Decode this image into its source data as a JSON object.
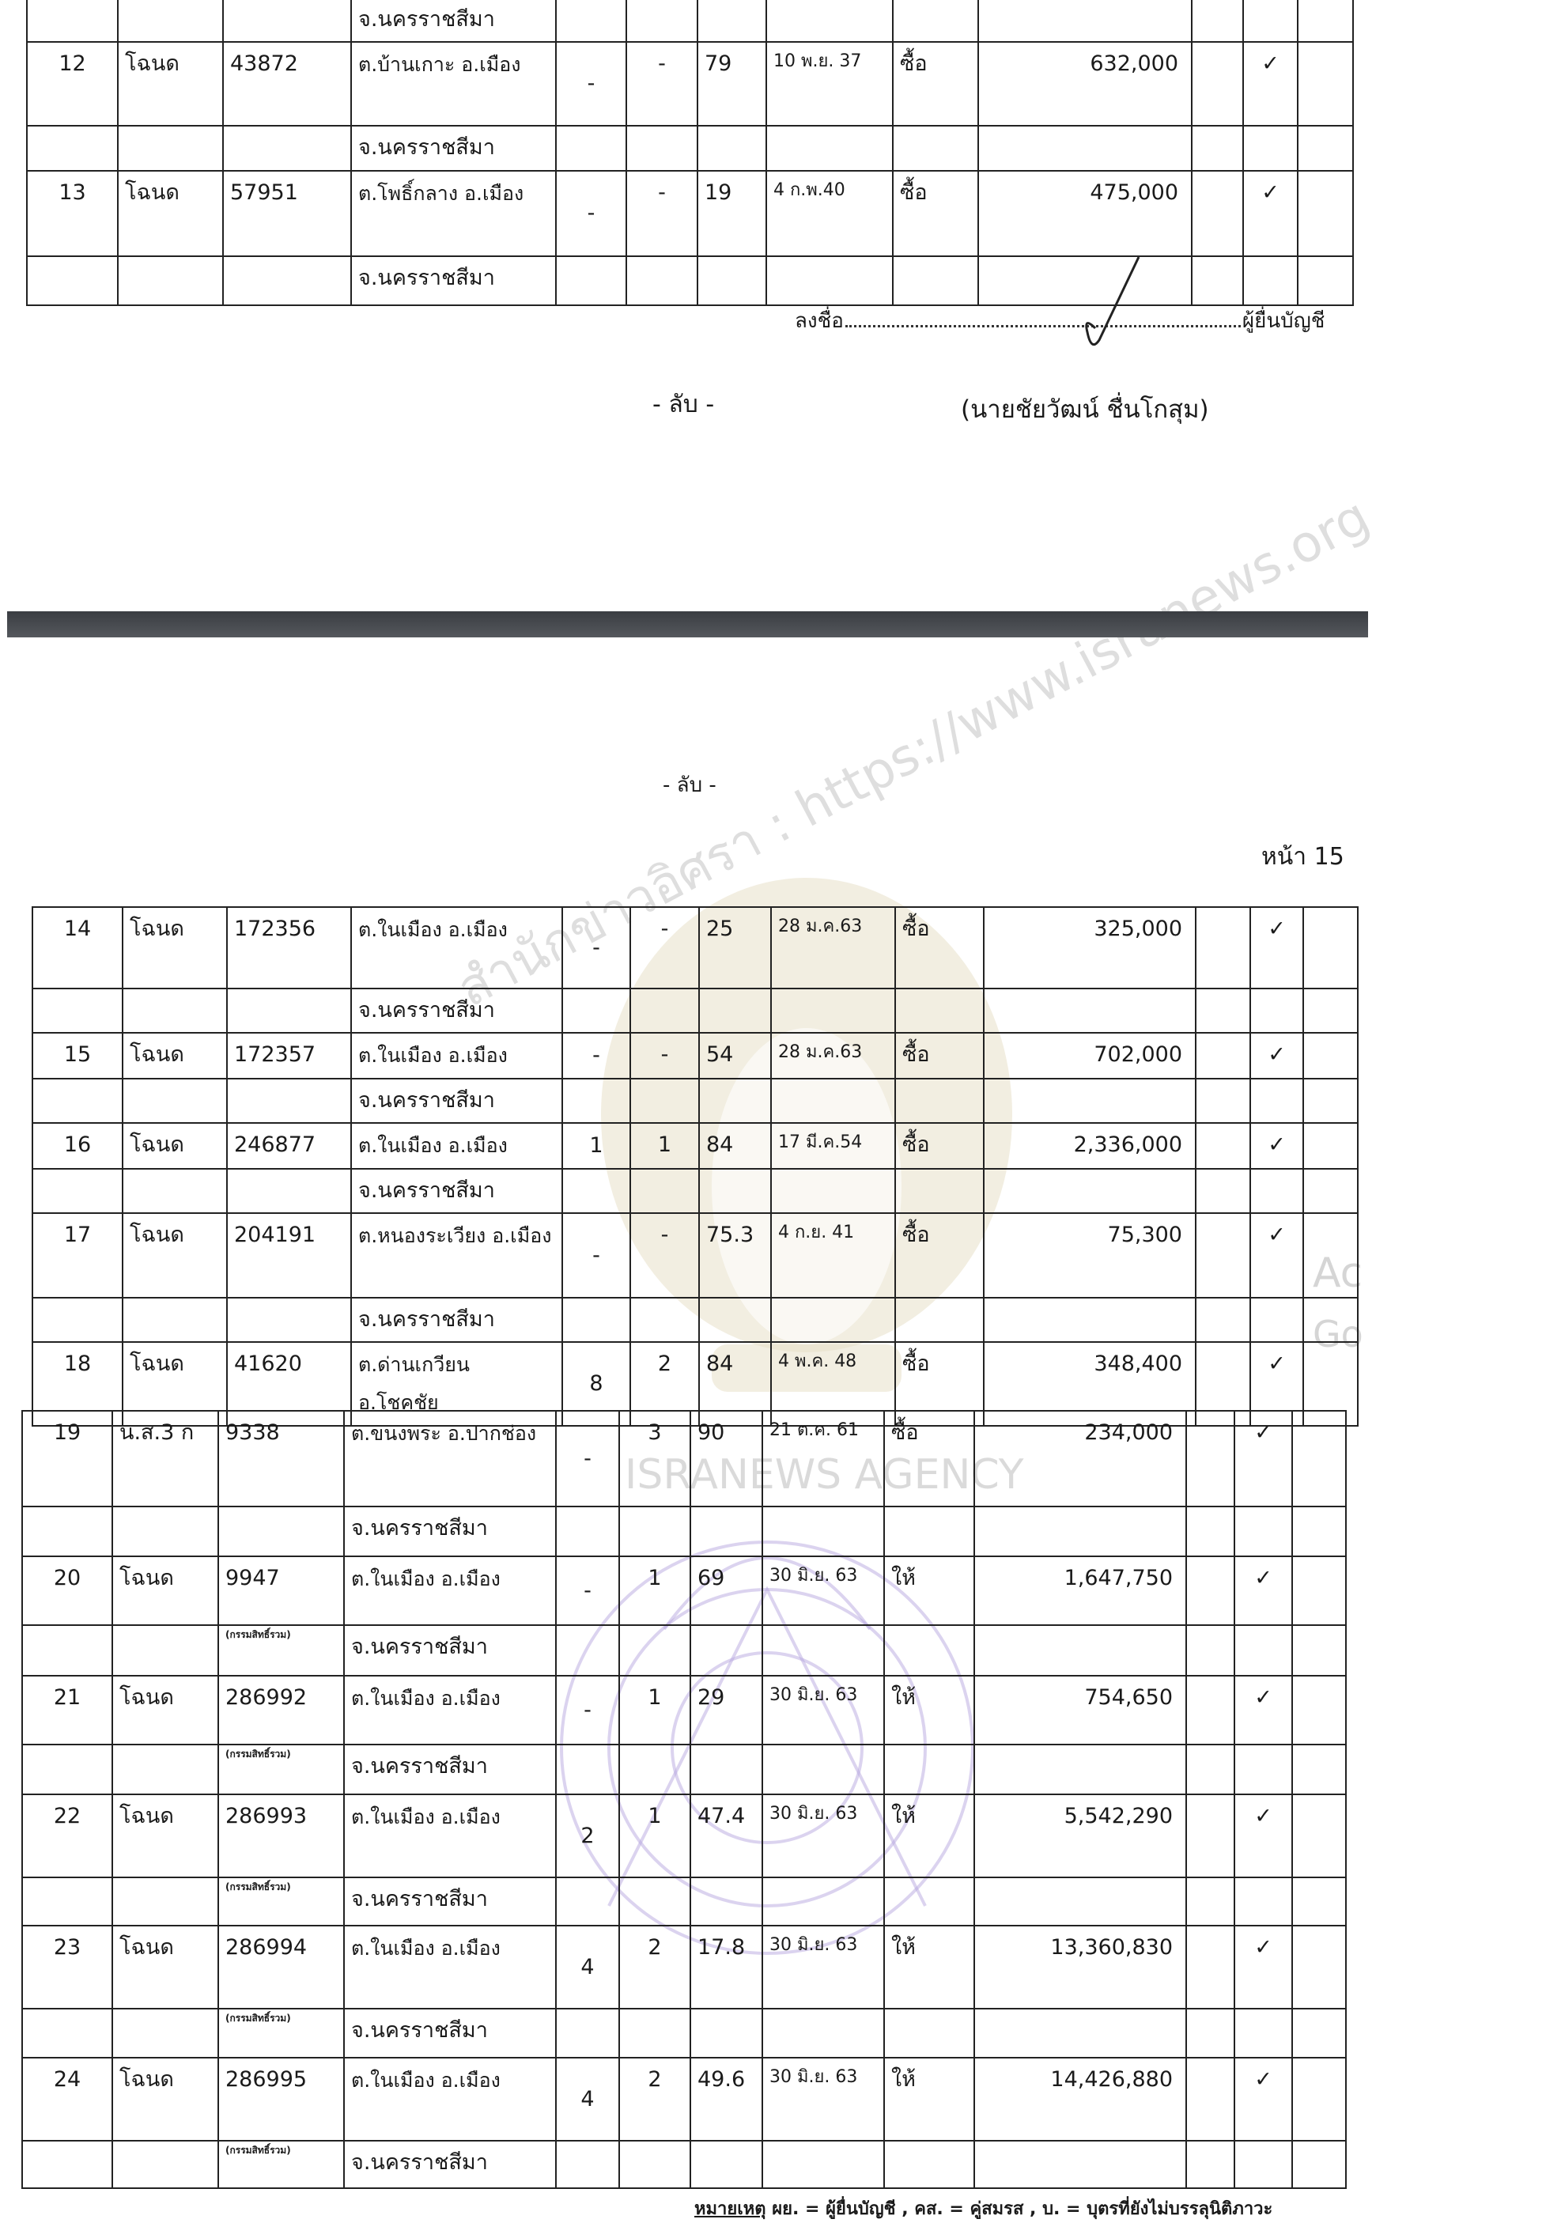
{
  "page1": {
    "table": {
      "records": [
        {
          "province": "จ.นครราชสีมา"
        },
        {
          "no": "12",
          "type": "โฉนด",
          "deed": "43872",
          "location": "ต.บ้านเกาะ อ.เมือง",
          "province": "จ.นครราชสีมา",
          "rai": "-",
          "ngan": "-",
          "wa": "79",
          "date": "10 พ.ย. 37",
          "acq": "ซื้อ",
          "price": "632,000",
          "check": "✓"
        },
        {
          "no": "13",
          "type": "โฉนด",
          "deed": "57951",
          "location": "ต.โพธิ์กลาง อ.เมือง",
          "province": "จ.นครราชสีมา",
          "rai": "-",
          "ngan": "-",
          "wa": "19",
          "date": "4 ก.พ.40",
          "acq": "ซื้อ",
          "price": "475,000",
          "check": "✓"
        }
      ]
    },
    "signature": {
      "sign_label": "ลงชื่อ",
      "role": "ผู้ยื่นบัญชี",
      "name": "(นายชัยวัฒน์ ชื่นโกสุม)"
    },
    "classification": "- ลับ -"
  },
  "page2": {
    "classification": "- ลับ -",
    "page_number": "หน้า 15",
    "table_a": {
      "records": [
        {
          "no": "14",
          "type": "โฉนด",
          "deed": "172356",
          "location": "ต.ในเมือง อ.เมือง",
          "province": "จ.นครราชสีมา",
          "rai": "-",
          "ngan": "-",
          "wa": "25",
          "date": "28 ม.ค.63",
          "acq": "ซื้อ",
          "price": "325,000",
          "check": "✓"
        },
        {
          "no": "15",
          "type": "โฉนด",
          "deed": "172357",
          "location": "ต.ในเมือง อ.เมือง",
          "province": "จ.นครราชสีมา",
          "rai": "-",
          "ngan": "-",
          "wa": "54",
          "date": "28 ม.ค.63",
          "acq": "ซื้อ",
          "price": "702,000",
          "check": "✓"
        },
        {
          "no": "16",
          "type": "โฉนด",
          "deed": "246877",
          "location": "ต.ในเมือง อ.เมือง",
          "province": "จ.นครราชสีมา",
          "rai": "1",
          "ngan": "1",
          "wa": "84",
          "date": "17 มี.ค.54",
          "acq": "ซื้อ",
          "price": "2,336,000",
          "check": "✓"
        },
        {
          "no": "17",
          "type": "โฉนด",
          "deed": "204191",
          "location": "ต.หนองระเวียง อ.เมือง",
          "province": "จ.นครราชสีมา",
          "rai": "-",
          "ngan": "-",
          "wa": "75.3",
          "date": "4 ก.ย. 41",
          "acq": "ซื้อ",
          "price": "75,300",
          "check": "✓"
        },
        {
          "no": "18",
          "type": "โฉนด",
          "deed": "41620",
          "location": "ต.ด่านเกวียน อ.โชคชัย",
          "rai": "8",
          "ngan": "2",
          "wa": "84",
          "date": "4 พ.ค. 48",
          "acq": "ซื้อ",
          "price": "348,400",
          "check": "✓"
        }
      ]
    },
    "table_b": {
      "records": [
        {
          "no": "19",
          "type": "น.ส.3 ก",
          "deed": "9338",
          "location": "ต.ขนงพระ อ.ปากช่อง",
          "province": "จ.นครราชสีมา",
          "rai": "-",
          "ngan": "3",
          "wa": "90",
          "date": "21 ต.ค. 61",
          "acq": "ซื้อ",
          "price": "234,000",
          "check": "✓"
        },
        {
          "no": "20",
          "type": "โฉนด",
          "deed": "9947",
          "deed_note": "(กรรมสิทธิ์รวม)",
          "location": "ต.ในเมือง อ.เมือง",
          "province": "จ.นครราชสีมา",
          "rai": "-",
          "ngan": "1",
          "wa": "69",
          "date": "30 มิ.ย. 63",
          "acq": "ให้",
          "price": "1,647,750",
          "check": "✓"
        },
        {
          "no": "21",
          "type": "โฉนด",
          "deed": "286992",
          "deed_note": "(กรรมสิทธิ์รวม)",
          "location": "ต.ในเมือง อ.เมือง",
          "province": "จ.นครราชสีมา",
          "rai": "-",
          "ngan": "1",
          "wa": "29",
          "date": "30 มิ.ย. 63",
          "acq": "ให้",
          "price": "754,650",
          "check": "✓"
        },
        {
          "no": "22",
          "type": "โฉนด",
          "deed": "286993",
          "deed_note": "(กรรมสิทธิ์รวม)",
          "location": "ต.ในเมือง อ.เมือง",
          "province": "จ.นครราชสีมา",
          "rai": "2",
          "ngan": "1",
          "wa": "47.4",
          "date": "30 มิ.ย. 63",
          "acq": "ให้",
          "price": "5,542,290",
          "check": "✓"
        },
        {
          "no": "23",
          "type": "โฉนด",
          "deed": "286994",
          "deed_note": "(กรรมสิทธิ์รวม)",
          "location": "ต.ในเมือง อ.เมือง",
          "province": "จ.นครราชสีมา",
          "rai": "4",
          "ngan": "2",
          "wa": "17.8",
          "date": "30 มิ.ย. 63",
          "acq": "ให้",
          "price": "13,360,830",
          "check": "✓"
        },
        {
          "no": "24",
          "type": "โฉนด",
          "deed": "286995",
          "deed_note": "(กรรมสิทธิ์รวม)",
          "location": "ต.ในเมือง อ.เมือง",
          "province": "จ.นครราชสีมา",
          "rai": "4",
          "ngan": "2",
          "wa": "49.6",
          "date": "30 มิ.ย. 63",
          "acq": "ให้",
          "price": "14,426,880",
          "check": "✓"
        }
      ]
    },
    "footnote": {
      "label": "หมายเหตุ",
      "text": " ผย. = ผู้ยื่นบัญชี , คส. = คู่สมรส , บ. = บุตรที่ยังไม่บรรลุนิติภาวะ"
    }
  },
  "watermarks": {
    "diagonal": "สำนักข่าวอิศรา : https://www.isranews.org",
    "agency": "ISRANEWS AGENCY",
    "overlay_fragment_1": "Ac",
    "overlay_fragment_2": "Go"
  },
  "colors": {
    "divider_bar": "#45484d",
    "watermark_seal": "#e8e0c8",
    "watermark_emblem": "#b8a8e0"
  }
}
